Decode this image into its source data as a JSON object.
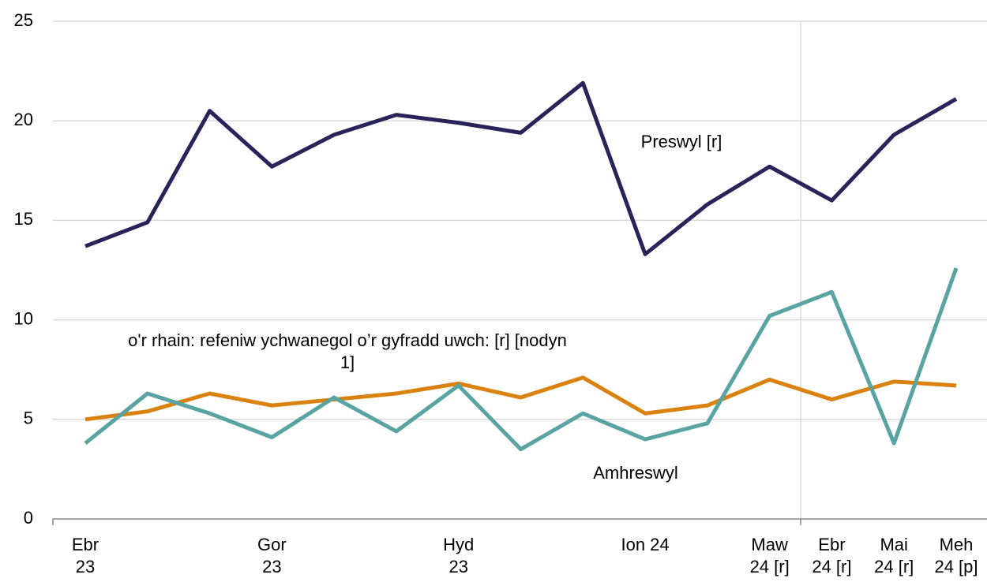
{
  "chart_data": {
    "type": "line",
    "categories": [
      "Ebr 23",
      null,
      null,
      "Gor 23",
      null,
      null,
      "Hyd 23",
      null,
      null,
      "Ion 24",
      null,
      "Maw 24 [r]",
      "Ebr 24 [r]",
      "Mai 24 [r]",
      "Meh 24 [p]"
    ],
    "series": [
      {
        "name": "Preswyl [r]",
        "color": "#28245a",
        "values": [
          13.7,
          14.9,
          20.5,
          17.7,
          19.3,
          20.3,
          19.9,
          19.4,
          21.9,
          13.3,
          15.8,
          17.7,
          16.0,
          19.3,
          21.1
        ]
      },
      {
        "name": "o'r rhain: refeniw ychwanegol o’r gyfradd uwch:  [r] [nodyn 1]",
        "color": "#d9820f",
        "values": [
          5.0,
          5.4,
          6.3,
          5.7,
          6.0,
          6.3,
          6.8,
          6.1,
          7.1,
          5.3,
          5.7,
          7.0,
          6.0,
          6.9,
          6.7
        ]
      },
      {
        "name": "Amhreswyl",
        "color": "#5aa3a3",
        "values": [
          3.8,
          6.3,
          5.3,
          4.1,
          6.1,
          4.4,
          6.7,
          3.5,
          5.3,
          4.0,
          4.8,
          10.2,
          11.4,
          3.8,
          12.6
        ]
      }
    ],
    "ylim": [
      0,
      25
    ],
    "yticks": [
      0,
      5,
      10,
      15,
      20,
      25
    ],
    "grid": true
  }
}
